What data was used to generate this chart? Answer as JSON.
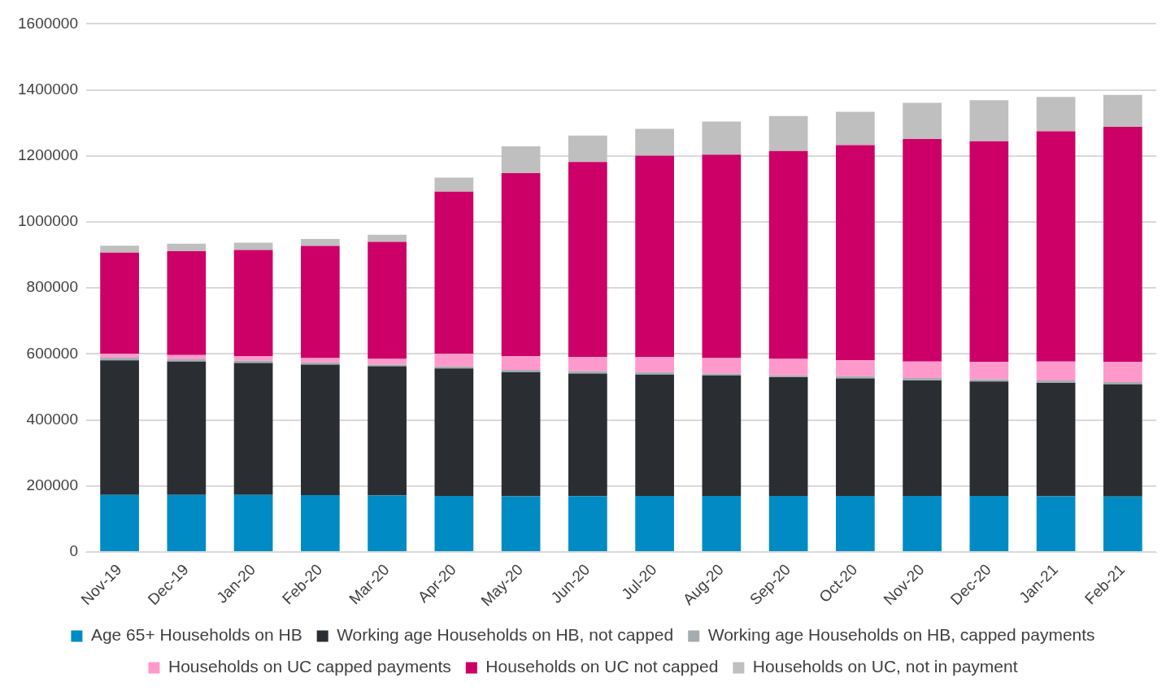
{
  "chart_data": {
    "type": "bar",
    "stacked": true,
    "categories": [
      "Nov-19",
      "Dec-19",
      "Jan-20",
      "Feb-20",
      "Mar-20",
      "Apr-20",
      "May-20",
      "Jun-20",
      "Jul-20",
      "Aug-20",
      "Sep-20",
      "Oct-20",
      "Nov-20",
      "Dec-20",
      "Jan-21",
      "Feb-21"
    ],
    "series": [
      {
        "name": "Age 65+ Households on HB",
        "color": "#008bc4",
        "values": [
          173000,
          173000,
          173000,
          172500,
          171200,
          170400,
          168800,
          169600,
          170000,
          170000,
          170000,
          170000,
          170000,
          170000,
          169000,
          168500
        ]
      },
      {
        "name": "Working age Households on HB, not capped",
        "color": "#2a2e33",
        "values": [
          408000,
          404000,
          400000,
          395600,
          391600,
          385700,
          376400,
          371100,
          367700,
          365000,
          359700,
          356300,
          349700,
          346900,
          343400,
          339400
        ]
      },
      {
        "name": "Working age Households on HB, capped payments",
        "color": "#a5acaf",
        "values": [
          8000,
          7000,
          7000,
          6300,
          5300,
          6400,
          6400,
          7200,
          7500,
          5700,
          5600,
          6300,
          7400,
          6500,
          7300,
          7200
        ]
      },
      {
        "name": "Households on UC capped payments",
        "color": "#ff99cc",
        "values": [
          12000,
          12600,
          13000,
          13300,
          16700,
          37800,
          41300,
          43100,
          45800,
          46600,
          49500,
          48400,
          50300,
          52400,
          57700,
          61500
        ]
      },
      {
        "name": "Households on UC not capped",
        "color": "#cc0066",
        "values": [
          306000,
          315000,
          322000,
          340000,
          355000,
          491700,
          555100,
          591000,
          610000,
          616700,
          630200,
          652000,
          673600,
          668700,
          697200,
          711900
        ]
      },
      {
        "name": "Households on UC, not in payment",
        "color": "#bfbfbf",
        "values": [
          21000,
          22300,
          22000,
          20400,
          21300,
          42400,
          81000,
          80000,
          81000,
          100000,
          106000,
          101000,
          110000,
          124500,
          104400,
          96100
        ]
      }
    ],
    "ylim": [
      0,
      1600000
    ],
    "yticks": [
      0,
      200000,
      400000,
      600000,
      800000,
      1000000,
      1200000,
      1400000,
      1600000
    ],
    "grid": "y",
    "legend": "bottom"
  }
}
